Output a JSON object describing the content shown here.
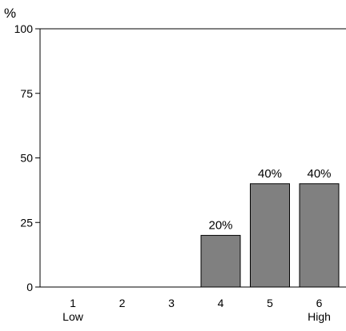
{
  "chart_data": {
    "type": "bar",
    "ylabel": "%",
    "ylim": [
      0,
      100
    ],
    "yticks": [
      0,
      25,
      50,
      75,
      100
    ],
    "categories": [
      "1",
      "2",
      "3",
      "4",
      "5",
      "6"
    ],
    "category_sublabels": [
      "Low",
      "",
      "",
      "",
      "",
      "High"
    ],
    "values": [
      0,
      0,
      0,
      20,
      40,
      40
    ],
    "data_labels": [
      "",
      "",
      "",
      "20%",
      "40%",
      "40%"
    ],
    "bar_color": "#808080",
    "grid": false
  }
}
